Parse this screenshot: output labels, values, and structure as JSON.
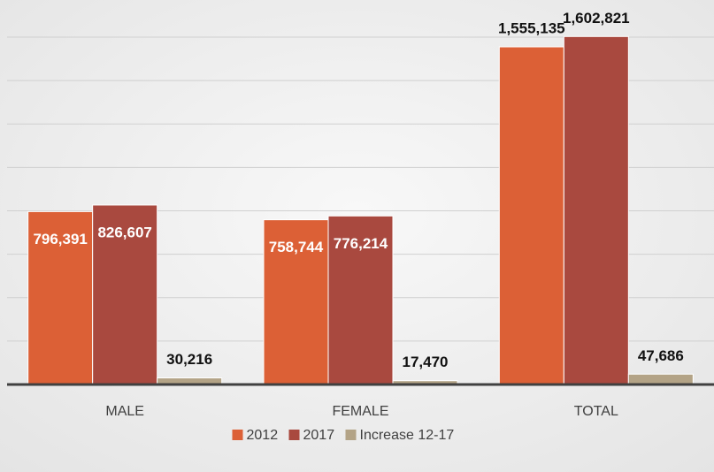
{
  "chart_data": {
    "type": "bar",
    "categories": [
      "MALE",
      "FEMALE",
      "TOTAL"
    ],
    "series": [
      {
        "name": "2012",
        "color": "#dc6036",
        "values": [
          796391,
          758744,
          1555135
        ],
        "value_labels": [
          "796,391",
          "758,744",
          "1,555,135"
        ]
      },
      {
        "name": "2017",
        "color": "#a9493f",
        "values": [
          826607,
          776214,
          1602821
        ],
        "value_labels": [
          "826,607",
          "776,214",
          "1,602,821"
        ]
      },
      {
        "name": "Increase 12-17",
        "color": "#b3a386",
        "values": [
          30216,
          17470,
          47686
        ],
        "value_labels": [
          "30,216",
          "17,470",
          "47,686"
        ]
      }
    ],
    "ylim": [
      0,
      1600000
    ],
    "yticks": [
      0,
      200000,
      400000,
      600000,
      800000,
      1000000,
      1200000,
      1400000,
      1600000
    ],
    "grid": true,
    "legend": "bottom"
  }
}
